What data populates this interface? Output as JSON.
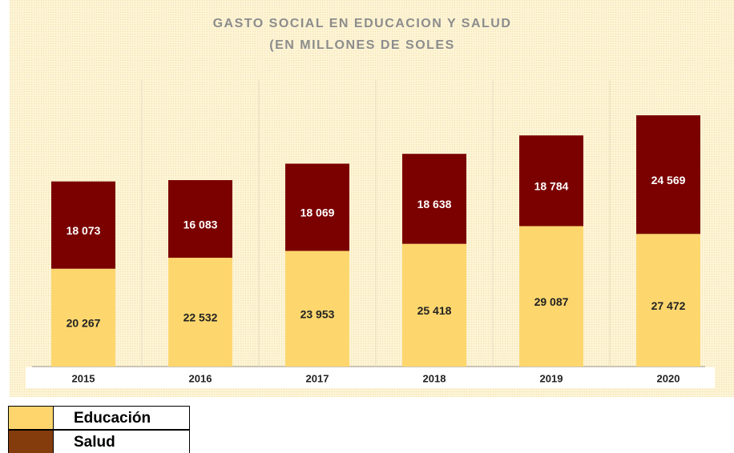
{
  "chart_data": {
    "type": "stacked_bar",
    "title_lines": [
      "GASTO SOCIAL EN EDUCACION Y SALUD",
      "(EN MILLONES DE SOLES"
    ],
    "categories": [
      "2015",
      "2016",
      "2017",
      "2018",
      "2019",
      "2020"
    ],
    "series": [
      {
        "name": "Educación",
        "color": "#fdd76e",
        "legend_color": "#fdd56c",
        "label_color": "#222222",
        "values": [
          20267,
          22532,
          23953,
          25418,
          29087,
          27472
        ],
        "value_labels": [
          "20 267",
          "22 532",
          "23 953",
          "25 418",
          "29 087",
          "27 472"
        ]
      },
      {
        "name": "Salud",
        "color": "#7b0000",
        "legend_color": "#843c0c",
        "label_color": "#ffffff",
        "values": [
          18073,
          16083,
          18069,
          18638,
          18784,
          24569
        ],
        "value_labels": [
          "18 073",
          "16 083",
          "18 069",
          "18 638",
          "18 784",
          "24 569"
        ]
      }
    ],
    "ylim": [
      0,
      61000
    ],
    "grid": true
  }
}
